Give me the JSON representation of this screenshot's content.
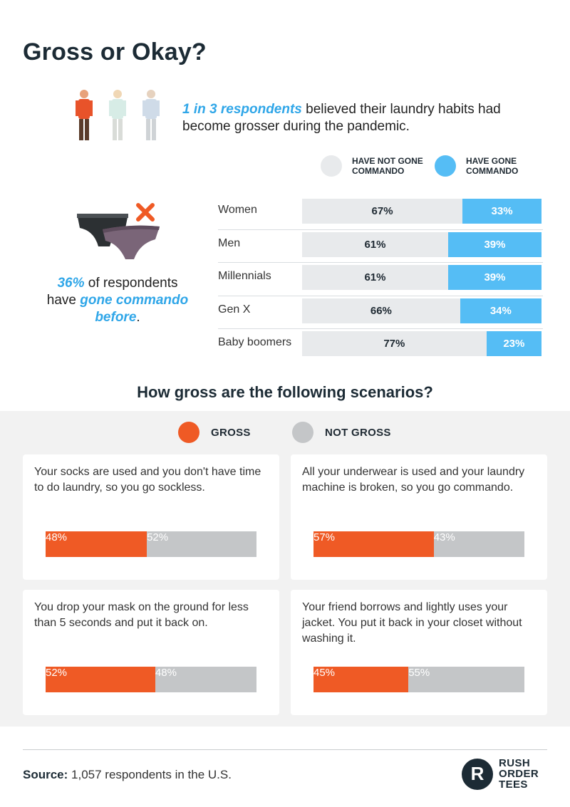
{
  "title": "Gross or Okay?",
  "intro": {
    "highlight": "1 in 3 respondents",
    "rest": " believed their laundry habits had become grosser during the pandemic."
  },
  "icons": {
    "people": [
      "person-icon",
      "person-icon",
      "person-icon"
    ],
    "underwear": "underwear-icon",
    "cross": "x-mark-icon",
    "logo": "rush-order-tees-logo"
  },
  "commando_stat": {
    "pct": "36%",
    "text1": " of respondents have ",
    "highlight": "gone commando before",
    "end": "."
  },
  "colors": {
    "have_not_gone": "#e8eaec",
    "have_gone": "#55bdf5",
    "gross": "#ef5a25",
    "not_gross": "#c4c6c8",
    "accent_text": "#2fa6e8"
  },
  "chart_data": [
    {
      "type": "bar",
      "stacked": true,
      "orientation": "horizontal",
      "categories": [
        "Women",
        "Men",
        "Millennials",
        "Gen X",
        "Baby boomers"
      ],
      "series": [
        {
          "name": "HAVE NOT GONE COMMANDO",
          "values": [
            67,
            61,
            61,
            66,
            77
          ]
        },
        {
          "name": "HAVE GONE COMMANDO",
          "values": [
            33,
            39,
            39,
            34,
            23
          ]
        }
      ],
      "unit": "%",
      "legend_position": "top-right"
    },
    {
      "type": "bar",
      "stacked": true,
      "orientation": "horizontal",
      "title": "How gross are the following scenarios?",
      "categories": [
        "Your socks are used and you don't have time to do laundry, so you go sockless.",
        "All your underwear is used and your laundry machine is broken, so you go commando.",
        "You drop your mask on the ground for less than 5 seconds and put it back on.",
        "Your friend borrows and lightly uses your jacket. You put it back in your closet without washing it."
      ],
      "series": [
        {
          "name": "GROSS",
          "values": [
            48,
            57,
            52,
            45
          ]
        },
        {
          "name": "NOT GROSS",
          "values": [
            52,
            43,
            48,
            55
          ]
        }
      ],
      "unit": "%",
      "legend_position": "top-center"
    }
  ],
  "source": {
    "label": "Source:",
    "text": " 1,057 respondents in the U.S."
  },
  "logo_words": [
    "RUSH",
    "ORDER",
    "TEES"
  ],
  "logo_letter": "R"
}
